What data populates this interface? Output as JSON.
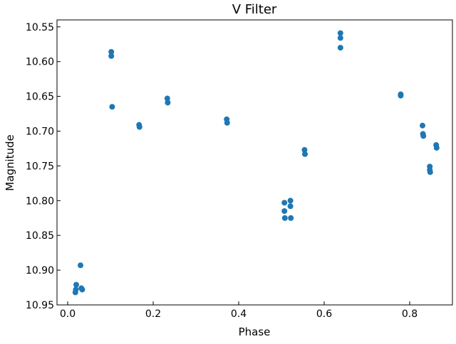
{
  "chart_data": {
    "type": "scatter",
    "title": "V Filter",
    "xlabel": "Phase",
    "ylabel": "Magnitude",
    "xlim": [
      -0.025,
      0.9
    ],
    "ylim": [
      10.95,
      10.54
    ],
    "y_inverted": true,
    "grid": false,
    "legend": "none",
    "xticks": [
      {
        "value": 0.0,
        "label": "0.0"
      },
      {
        "value": 0.2,
        "label": "0.2"
      },
      {
        "value": 0.4,
        "label": "0.4"
      },
      {
        "value": 0.6,
        "label": "0.6"
      },
      {
        "value": 0.8,
        "label": "0.8"
      }
    ],
    "yticks": [
      {
        "value": 10.55,
        "label": "10.55"
      },
      {
        "value": 10.6,
        "label": "10.60"
      },
      {
        "value": 10.65,
        "label": "10.65"
      },
      {
        "value": 10.7,
        "label": "10.70"
      },
      {
        "value": 10.75,
        "label": "10.75"
      },
      {
        "value": 10.8,
        "label": "10.80"
      },
      {
        "value": 10.85,
        "label": "10.85"
      },
      {
        "value": 10.9,
        "label": "10.90"
      },
      {
        "value": 10.95,
        "label": "10.95"
      }
    ],
    "series": [
      {
        "color": "#1f77b4",
        "points": [
          {
            "x": 0.018,
            "y": 10.932
          },
          {
            "x": 0.019,
            "y": 10.928
          },
          {
            "x": 0.02,
            "y": 10.921
          },
          {
            "x": 0.03,
            "y": 10.893
          },
          {
            "x": 0.032,
            "y": 10.926
          },
          {
            "x": 0.034,
            "y": 10.928
          },
          {
            "x": 0.102,
            "y": 10.586
          },
          {
            "x": 0.102,
            "y": 10.592
          },
          {
            "x": 0.104,
            "y": 10.665
          },
          {
            "x": 0.167,
            "y": 10.691
          },
          {
            "x": 0.168,
            "y": 10.694
          },
          {
            "x": 0.233,
            "y": 10.653
          },
          {
            "x": 0.234,
            "y": 10.659
          },
          {
            "x": 0.372,
            "y": 10.683
          },
          {
            "x": 0.373,
            "y": 10.688
          },
          {
            "x": 0.507,
            "y": 10.803
          },
          {
            "x": 0.507,
            "y": 10.815
          },
          {
            "x": 0.508,
            "y": 10.825
          },
          {
            "x": 0.521,
            "y": 10.8
          },
          {
            "x": 0.521,
            "y": 10.808
          },
          {
            "x": 0.522,
            "y": 10.825
          },
          {
            "x": 0.554,
            "y": 10.727
          },
          {
            "x": 0.555,
            "y": 10.733
          },
          {
            "x": 0.638,
            "y": 10.559
          },
          {
            "x": 0.638,
            "y": 10.566
          },
          {
            "x": 0.638,
            "y": 10.58
          },
          {
            "x": 0.779,
            "y": 10.647
          },
          {
            "x": 0.779,
            "y": 10.649
          },
          {
            "x": 0.83,
            "y": 10.692
          },
          {
            "x": 0.831,
            "y": 10.704
          },
          {
            "x": 0.832,
            "y": 10.707
          },
          {
            "x": 0.847,
            "y": 10.751
          },
          {
            "x": 0.847,
            "y": 10.756
          },
          {
            "x": 0.848,
            "y": 10.759
          },
          {
            "x": 0.862,
            "y": 10.72
          },
          {
            "x": 0.863,
            "y": 10.724
          }
        ]
      }
    ]
  }
}
